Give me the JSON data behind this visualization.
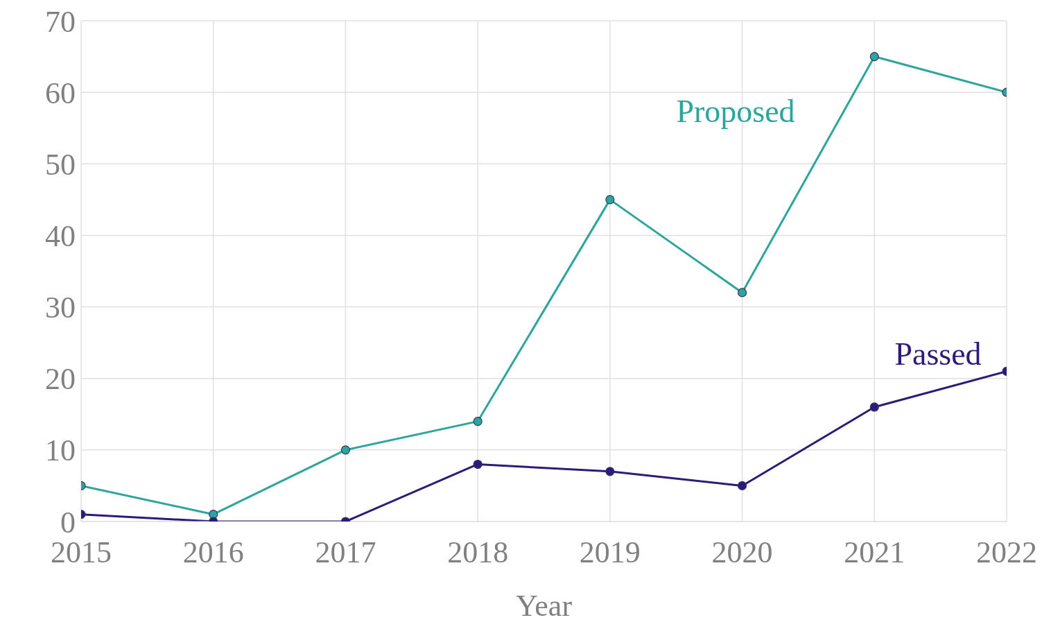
{
  "chart_data": {
    "type": "line",
    "xlabel": "Year",
    "x": [
      2015,
      2016,
      2017,
      2018,
      2019,
      2020,
      2021,
      2022
    ],
    "xlim": [
      2015,
      2022
    ],
    "xticks": [
      2015,
      2016,
      2017,
      2018,
      2019,
      2020,
      2021,
      2022
    ],
    "ylim": [
      0,
      70
    ],
    "yticks": [
      0,
      10,
      20,
      30,
      40,
      50,
      60,
      70
    ],
    "grid": true,
    "legend": false,
    "marker": "circle",
    "line_style": "solid",
    "series": [
      {
        "name": "Proposed",
        "color": "#2ca59d",
        "values": [
          5,
          1,
          10,
          14,
          45,
          32,
          65,
          60
        ]
      },
      {
        "name": "Passed",
        "color": "#2e1a7a",
        "values": [
          1,
          0,
          0,
          8,
          7,
          5,
          16,
          21
        ]
      }
    ]
  }
}
